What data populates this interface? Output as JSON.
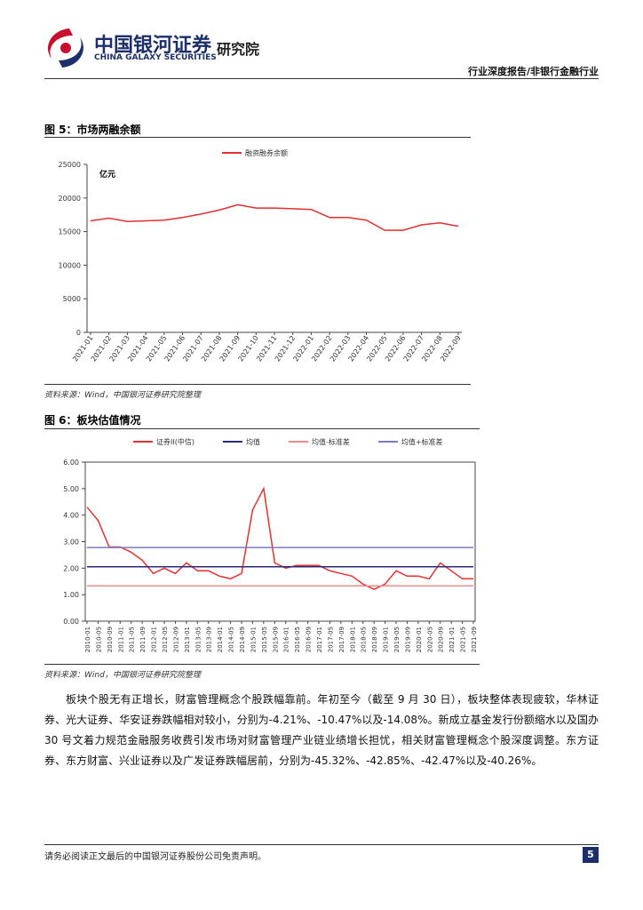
{
  "header": {
    "company_cn": "中国银河证券",
    "company_en": "CHINA GALAXY SECURITIES",
    "institute": "研究院",
    "report_type": "行业深度报告/非银行金融行业"
  },
  "fig5": {
    "caption": "图 5：市场两融余额",
    "source": "资料来源：Wind，中国银河证券研究院整理",
    "chart_data": {
      "type": "line",
      "unit_label": "亿元",
      "categories": [
        "2021-01",
        "2021-02",
        "2021-03",
        "2021-04",
        "2021-05",
        "2021-06",
        "2021-07",
        "2021-08",
        "2021-09",
        "2021-10",
        "2021-11",
        "2021-12",
        "2022-01",
        "2022-02",
        "2022-03",
        "2022-04",
        "2022-05",
        "2022-06",
        "2022-07",
        "2022-08",
        "2022-09"
      ],
      "series": [
        {
          "name": "融资融券余额",
          "color": "#e0312f",
          "values": [
            16600,
            17000,
            16500,
            16600,
            16700,
            17100,
            17600,
            18200,
            19000,
            18500,
            18500,
            18400,
            18300,
            17100,
            17100,
            16700,
            15200,
            15200,
            16000,
            16300,
            15800
          ]
        }
      ],
      "ylim": [
        0,
        25000
      ],
      "yticks": [
        0,
        5000,
        10000,
        15000,
        20000,
        25000
      ],
      "legend": "top"
    }
  },
  "fig6": {
    "caption": "图 6：板块估值情况",
    "source": "资料来源：Wind，中国银河证券研究院整理",
    "chart_data": {
      "type": "line",
      "categories": [
        "2010-01",
        "2010-05",
        "2010-09",
        "2011-01",
        "2011-05",
        "2011-09",
        "2012-01",
        "2012-05",
        "2012-09",
        "2013-01",
        "2013-05",
        "2013-09",
        "2014-01",
        "2014-05",
        "2014-09",
        "2015-01",
        "2015-05",
        "2015-09",
        "2016-01",
        "2016-05",
        "2016-09",
        "2017-01",
        "2017-05",
        "2017-09",
        "2018-01",
        "2018-05",
        "2018-09",
        "2019-01",
        "2019-05",
        "2019-09",
        "2020-01",
        "2020-05",
        "2020-09",
        "2021-01",
        "2021-05",
        "2021-09"
      ],
      "series": [
        {
          "name": "证券II(中信)",
          "color": "#e8312f",
          "values": [
            4.3,
            3.8,
            2.8,
            2.8,
            2.6,
            2.3,
            1.8,
            2.0,
            1.8,
            2.2,
            1.9,
            1.9,
            1.7,
            1.6,
            1.8,
            4.2,
            5.0,
            2.2,
            2.0,
            2.1,
            2.1,
            2.1,
            1.9,
            1.8,
            1.7,
            1.4,
            1.2,
            1.4,
            1.9,
            1.7,
            1.7,
            1.6,
            2.2,
            1.9,
            1.6,
            1.6
          ]
        },
        {
          "name": "均值",
          "color": "#2a2a7a",
          "values": [
            2.05,
            2.05,
            2.05,
            2.05,
            2.05,
            2.05,
            2.05,
            2.05,
            2.05,
            2.05,
            2.05,
            2.05,
            2.05,
            2.05,
            2.05,
            2.05,
            2.05,
            2.05,
            2.05,
            2.05,
            2.05,
            2.05,
            2.05,
            2.05,
            2.05,
            2.05,
            2.05,
            2.05,
            2.05,
            2.05,
            2.05,
            2.05,
            2.05,
            2.05,
            2.05,
            2.05
          ]
        },
        {
          "name": "均值-标准差",
          "color": "#f08a8a",
          "values": [
            1.33,
            1.33,
            1.33,
            1.33,
            1.33,
            1.33,
            1.33,
            1.33,
            1.33,
            1.33,
            1.33,
            1.33,
            1.33,
            1.33,
            1.33,
            1.33,
            1.33,
            1.33,
            1.33,
            1.33,
            1.33,
            1.33,
            1.33,
            1.33,
            1.33,
            1.33,
            1.33,
            1.33,
            1.33,
            1.33,
            1.33,
            1.33,
            1.33,
            1.33,
            1.33,
            1.33
          ]
        },
        {
          "name": "均值+标准差",
          "color": "#7b7bc0",
          "values": [
            2.78,
            2.78,
            2.78,
            2.78,
            2.78,
            2.78,
            2.78,
            2.78,
            2.78,
            2.78,
            2.78,
            2.78,
            2.78,
            2.78,
            2.78,
            2.78,
            2.78,
            2.78,
            2.78,
            2.78,
            2.78,
            2.78,
            2.78,
            2.78,
            2.78,
            2.78,
            2.78,
            2.78,
            2.78,
            2.78,
            2.78,
            2.78,
            2.78,
            2.78,
            2.78,
            2.78
          ]
        }
      ],
      "ylim": [
        0,
        6
      ],
      "yticks": [
        {
          "value": 0,
          "label": "0.00"
        },
        {
          "value": 1,
          "label": "1.00"
        },
        {
          "value": 2,
          "label": "2.00"
        },
        {
          "value": 3,
          "label": "3.00"
        },
        {
          "value": 4,
          "label": "4.00"
        },
        {
          "value": 5,
          "label": "5.00"
        },
        {
          "value": 6,
          "label": "6.00"
        }
      ],
      "legend": "top"
    }
  },
  "paragraph": "板块个股无有正增长，财富管理概念个股跌幅靠前。年初至今（截至 9 月 30 日），板块整体表现疲软，华林证券、光大证券、华安证券跌幅相对较小，分别为-4.21%、-10.47%以及-14.08%。新成立基金发行份额缩水以及国办 30 号文着力规范金融服务收费引发市场对财富管理产业链业绩增长担忧，相关财富管理概念个股深度调整。东方证券、东方财富、兴业证券以及广发证券跌幅居前，分别为-45.32%、-42.85%、-42.47%以及-40.26%。",
  "footer": {
    "disclaimer": "请务必阅读正文最后的中国银河证券股份公司免责声明。",
    "page": "5"
  }
}
